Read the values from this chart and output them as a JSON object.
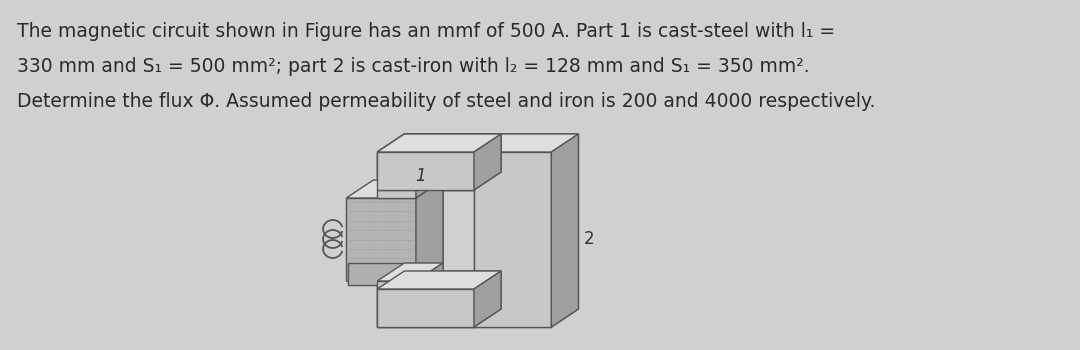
{
  "background_color": "#d0d0d0",
  "full_line1": "The magnetic circuit shown in Figure has an mmf of 500 A. Part 1 is cast-steel with l₁ =",
  "full_line2": "330 mm and S₁ = 500 mm²; part 2 is cast-iron with l₂ = 128 mm and S₁ = 350 mm².",
  "full_line3": "Determine the flux Φ. Assumed permeability of steel and iron is 200 and 4000 respectively.",
  "text_color": "#2a2a2a",
  "text_fontsize": 13.5,
  "label_1": "1",
  "label_2": "2",
  "c_face": "#c8c8c8",
  "c_top": "#dedede",
  "c_side": "#a0a0a0",
  "c_edge": "#555555",
  "c_coil": "#b4b4b4",
  "c_coil_dot": "#888888",
  "pdx": 28,
  "pdy": 18
}
